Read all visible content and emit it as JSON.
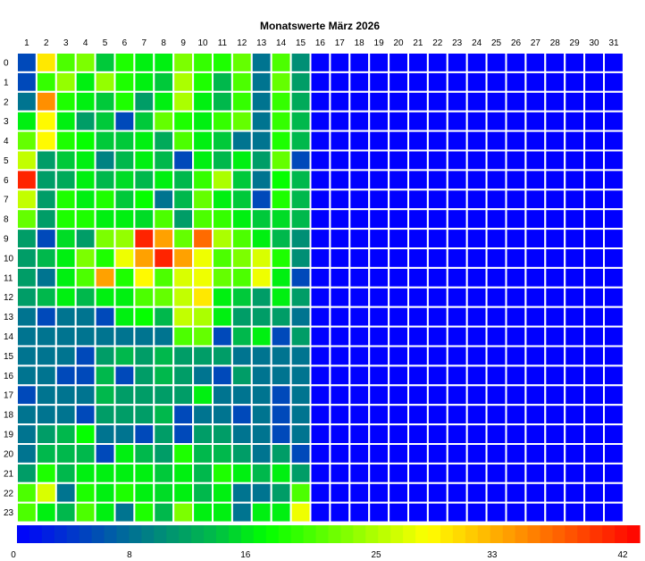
{
  "chart_data": {
    "type": "heatmap",
    "title": "Monatswerte März 2026",
    "x_categories": [
      "1",
      "2",
      "3",
      "4",
      "5",
      "6",
      "7",
      "8",
      "9",
      "10",
      "11",
      "12",
      "13",
      "14",
      "15",
      "16",
      "17",
      "18",
      "19",
      "20",
      "21",
      "22",
      "23",
      "24",
      "25",
      "26",
      "27",
      "28",
      "29",
      "30",
      "31"
    ],
    "y_categories": [
      "0",
      "1",
      "2",
      "3",
      "4",
      "5",
      "6",
      "7",
      "8",
      "9",
      "10",
      "11",
      "12",
      "13",
      "14",
      "15",
      "16",
      "17",
      "18",
      "19",
      "20",
      "21",
      "22",
      "23"
    ],
    "values": [
      [
        5,
        29,
        20,
        22,
        14,
        18,
        16,
        16,
        22,
        19,
        18,
        21,
        8,
        20,
        10,
        0,
        0,
        0,
        0,
        0,
        0,
        0,
        0,
        0,
        0,
        0,
        0,
        0,
        0,
        0,
        0
      ],
      [
        5,
        19,
        23,
        16,
        23,
        18,
        16,
        14,
        24,
        18,
        13,
        20,
        8,
        21,
        11,
        0,
        0,
        0,
        0,
        0,
        0,
        0,
        0,
        0,
        0,
        0,
        0,
        0,
        0,
        0,
        0
      ],
      [
        8,
        34,
        18,
        16,
        14,
        18,
        11,
        16,
        24,
        16,
        13,
        19,
        8,
        19,
        12,
        0,
        0,
        0,
        0,
        0,
        0,
        0,
        0,
        0,
        0,
        0,
        0,
        0,
        0,
        0,
        0
      ],
      [
        16,
        28,
        16,
        11,
        14,
        5,
        14,
        21,
        18,
        16,
        19,
        21,
        8,
        19,
        13,
        0,
        0,
        0,
        0,
        0,
        0,
        0,
        0,
        0,
        0,
        0,
        0,
        0,
        0,
        0,
        0
      ],
      [
        21,
        28,
        18,
        17,
        14,
        14,
        16,
        12,
        20,
        16,
        14,
        8,
        8,
        18,
        13,
        0,
        0,
        0,
        0,
        0,
        0,
        0,
        0,
        0,
        0,
        0,
        0,
        0,
        0,
        0,
        0
      ],
      [
        25,
        11,
        14,
        16,
        9,
        13,
        16,
        13,
        5,
        16,
        13,
        16,
        11,
        21,
        5,
        0,
        0,
        0,
        0,
        0,
        0,
        0,
        0,
        0,
        0,
        0,
        0,
        0,
        0,
        0,
        0
      ],
      [
        40,
        11,
        12,
        16,
        13,
        15,
        13,
        16,
        13,
        19,
        24,
        14,
        8,
        17,
        13,
        0,
        0,
        0,
        0,
        0,
        0,
        0,
        0,
        0,
        0,
        0,
        0,
        0,
        0,
        0,
        0
      ],
      [
        25,
        11,
        18,
        16,
        18,
        14,
        17,
        8,
        13,
        21,
        16,
        14,
        5,
        18,
        13,
        0,
        0,
        0,
        0,
        0,
        0,
        0,
        0,
        0,
        0,
        0,
        0,
        0,
        0,
        0,
        0
      ],
      [
        21,
        11,
        18,
        18,
        16,
        16,
        15,
        20,
        11,
        20,
        19,
        16,
        14,
        15,
        13,
        0,
        0,
        0,
        0,
        0,
        0,
        0,
        0,
        0,
        0,
        0,
        0,
        0,
        0,
        0,
        0
      ],
      [
        11,
        5,
        15,
        11,
        22,
        23,
        40,
        33,
        21,
        36,
        24,
        20,
        16,
        13,
        10,
        0,
        0,
        0,
        0,
        0,
        0,
        0,
        0,
        0,
        0,
        0,
        0,
        0,
        0,
        0,
        0
      ],
      [
        11,
        13,
        16,
        22,
        18,
        27,
        33,
        40,
        33,
        27,
        20,
        22,
        26,
        18,
        10,
        0,
        0,
        0,
        0,
        0,
        0,
        0,
        0,
        0,
        0,
        0,
        0,
        0,
        0,
        0,
        0
      ],
      [
        11,
        8,
        16,
        20,
        33,
        18,
        28,
        20,
        26,
        27,
        21,
        20,
        27,
        16,
        5,
        0,
        0,
        0,
        0,
        0,
        0,
        0,
        0,
        0,
        0,
        0,
        0,
        0,
        0,
        0,
        0
      ],
      [
        11,
        13,
        16,
        13,
        16,
        16,
        20,
        21,
        25,
        29,
        16,
        14,
        11,
        16,
        11,
        0,
        0,
        0,
        0,
        0,
        0,
        0,
        0,
        0,
        0,
        0,
        0,
        0,
        0,
        0,
        0
      ],
      [
        8,
        5,
        8,
        8,
        5,
        16,
        17,
        13,
        25,
        24,
        16,
        11,
        11,
        11,
        8,
        0,
        0,
        0,
        0,
        0,
        0,
        0,
        0,
        0,
        0,
        0,
        0,
        0,
        0,
        0,
        0
      ],
      [
        8,
        8,
        8,
        8,
        8,
        8,
        8,
        8,
        20,
        21,
        5,
        13,
        16,
        5,
        11,
        0,
        0,
        0,
        0,
        0,
        0,
        0,
        0,
        0,
        0,
        0,
        0,
        0,
        0,
        0,
        0
      ],
      [
        8,
        8,
        8,
        5,
        11,
        13,
        11,
        13,
        11,
        11,
        11,
        8,
        8,
        8,
        8,
        0,
        0,
        0,
        0,
        0,
        0,
        0,
        0,
        0,
        0,
        0,
        0,
        0,
        0,
        0,
        0
      ],
      [
        8,
        8,
        5,
        5,
        13,
        5,
        11,
        13,
        11,
        8,
        5,
        11,
        8,
        8,
        8,
        0,
        0,
        0,
        0,
        0,
        0,
        0,
        0,
        0,
        0,
        0,
        0,
        0,
        0,
        0,
        0
      ],
      [
        5,
        8,
        8,
        8,
        13,
        11,
        11,
        11,
        11,
        16,
        8,
        8,
        8,
        5,
        8,
        0,
        0,
        0,
        0,
        0,
        0,
        0,
        0,
        0,
        0,
        0,
        0,
        0,
        0,
        0,
        0
      ],
      [
        8,
        8,
        8,
        5,
        11,
        11,
        11,
        13,
        5,
        8,
        8,
        5,
        8,
        5,
        8,
        0,
        0,
        0,
        0,
        0,
        0,
        0,
        0,
        0,
        0,
        0,
        0,
        0,
        0,
        0,
        0
      ],
      [
        8,
        11,
        13,
        17,
        8,
        8,
        5,
        11,
        5,
        11,
        11,
        8,
        8,
        5,
        8,
        0,
        0,
        0,
        0,
        0,
        0,
        0,
        0,
        0,
        0,
        0,
        0,
        0,
        0,
        0,
        0
      ],
      [
        8,
        13,
        13,
        13,
        5,
        16,
        13,
        11,
        18,
        13,
        13,
        11,
        8,
        11,
        5,
        0,
        0,
        0,
        0,
        0,
        0,
        0,
        0,
        0,
        0,
        0,
        0,
        0,
        0,
        0,
        0
      ],
      [
        11,
        18,
        13,
        16,
        16,
        16,
        16,
        14,
        16,
        13,
        18,
        16,
        13,
        16,
        11,
        0,
        0,
        0,
        0,
        0,
        0,
        0,
        0,
        0,
        0,
        0,
        0,
        0,
        0,
        0,
        0
      ],
      [
        20,
        26,
        8,
        18,
        16,
        18,
        16,
        15,
        16,
        13,
        16,
        8,
        8,
        11,
        20,
        0,
        0,
        0,
        0,
        0,
        0,
        0,
        0,
        0,
        0,
        0,
        0,
        0,
        0,
        0,
        0
      ],
      [
        20,
        16,
        13,
        20,
        16,
        8,
        18,
        13,
        22,
        16,
        16,
        8,
        16,
        16,
        27,
        0,
        0,
        0,
        0,
        0,
        0,
        0,
        0,
        0,
        0,
        0,
        0,
        0,
        0,
        0,
        0
      ]
    ],
    "colorbar": {
      "min": 0,
      "max": 42,
      "ticks": [
        0,
        8,
        16,
        25,
        33,
        42
      ]
    },
    "grid": true,
    "legend": "bottom"
  }
}
